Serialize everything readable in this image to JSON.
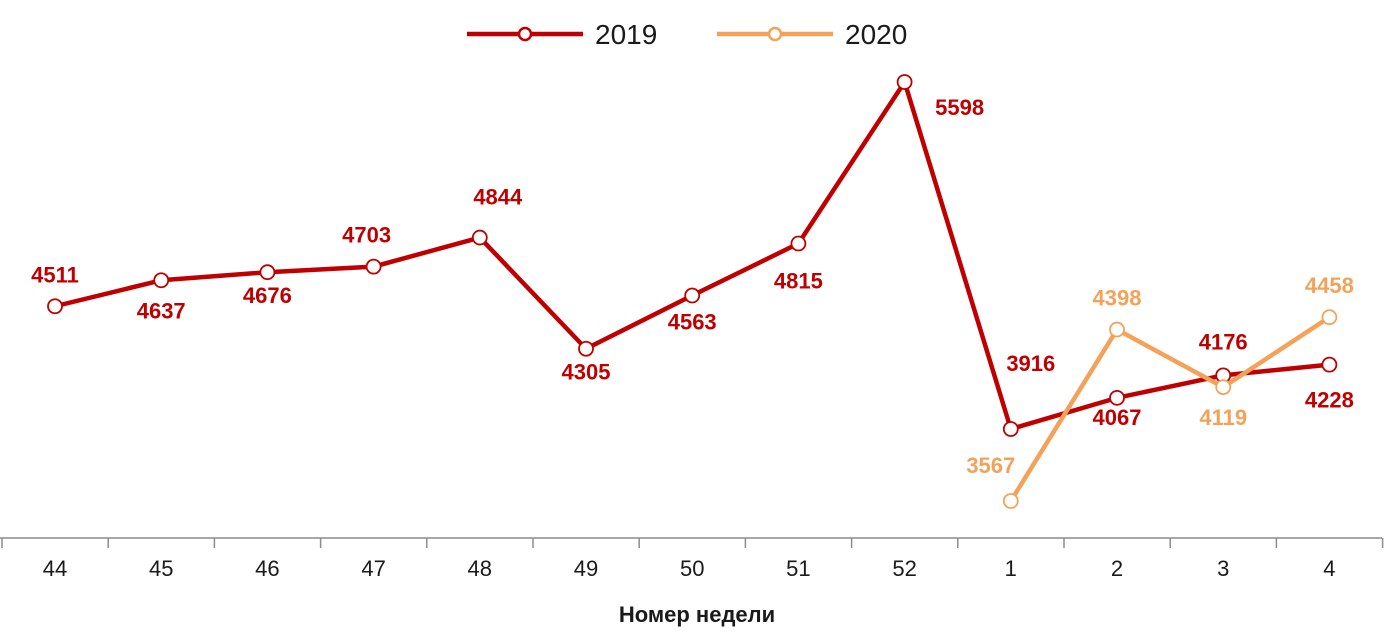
{
  "chart_data": {
    "type": "line",
    "categories": [
      "44",
      "45",
      "46",
      "47",
      "48",
      "49",
      "50",
      "51",
      "52",
      "1",
      "2",
      "3",
      "4"
    ],
    "xlabel": "Номер недели",
    "ylabel": "",
    "ylim": [
      2900,
      5800
    ],
    "grid": false,
    "legend_position": "top-center",
    "series": [
      {
        "name": "2019",
        "color": "#c00000",
        "values": [
          4511,
          4637,
          4676,
          4703,
          4844,
          4305,
          4563,
          4815,
          5598,
          3916,
          4067,
          4176,
          4228
        ],
        "labels": [
          "4511",
          "4637",
          "4676",
          "4703",
          "4844",
          "4305",
          "4563",
          "4815",
          "5598",
          "3916",
          "4067",
          "4176",
          "4228"
        ]
      },
      {
        "name": "2020",
        "color": "#f4a25a",
        "values": [
          null,
          null,
          null,
          null,
          null,
          null,
          null,
          null,
          null,
          3567,
          4398,
          4119,
          4458
        ],
        "labels": [
          null,
          null,
          null,
          null,
          null,
          null,
          null,
          null,
          null,
          "3567",
          "4398",
          "4119",
          "4458"
        ]
      }
    ]
  }
}
